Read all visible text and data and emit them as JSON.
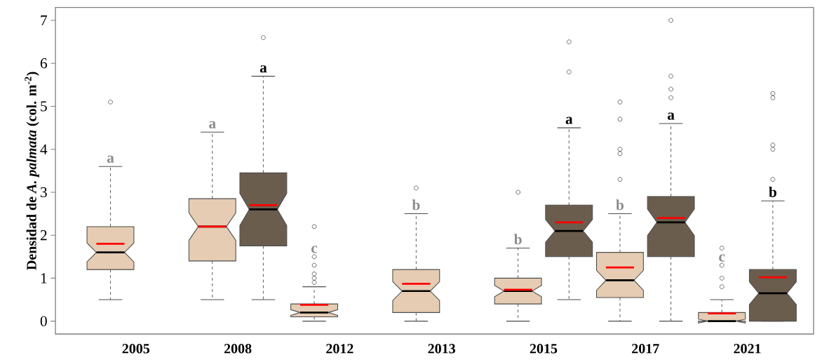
{
  "chart_data": {
    "type": "box",
    "ylabel": "Densidad de *A. palmata* (col. m$^{-2}$)",
    "categories": [
      "2005",
      "2008",
      "2012",
      "2013",
      "2015",
      "2017",
      "2021"
    ],
    "ylim": [
      -0.3,
      7.3
    ],
    "yticks": [
      0,
      1,
      2,
      3,
      4,
      5,
      6,
      7
    ],
    "series": [
      {
        "color": "#e5ccb2",
        "value_labels": [
          "a",
          "a",
          "c",
          "b",
          "b",
          "b",
          "c"
        ],
        "boxes": [
          {
            "low": 0.5,
            "q1": 1.2,
            "median": 1.6,
            "q3": 2.2,
            "high": 3.6,
            "mean": 1.8,
            "outliers": [
              5.1
            ]
          },
          {
            "low": 0.5,
            "q1": 1.4,
            "median": 2.2,
            "q3": 2.85,
            "high": 4.4,
            "mean": 2.2
          },
          {
            "low": 0,
            "q1": 0.1,
            "median": 0.2,
            "q3": 0.4,
            "high": 0.8,
            "mean": 0.38,
            "outliers": [
              0.9,
              1.0,
              1.1,
              1.3,
              1.5,
              2.2
            ]
          },
          {
            "low": 0,
            "q1": 0.2,
            "median": 0.7,
            "q3": 1.2,
            "high": 2.5,
            "mean": 0.87,
            "outliers": [
              3.1
            ]
          },
          {
            "low": 0,
            "q1": 0.4,
            "median": 0.7,
            "q3": 1.0,
            "high": 1.7,
            "mean": 0.73,
            "outliers": [
              3.0
            ]
          },
          {
            "low": 0,
            "q1": 0.55,
            "median": 0.95,
            "q3": 1.6,
            "high": 2.5,
            "mean": 1.25,
            "outliers": [
              3.3,
              3.9,
              4.0,
              4.7,
              5.1
            ]
          },
          {
            "low": 0,
            "q1": 0,
            "median": 0,
            "q3": 0.2,
            "high": 0.5,
            "mean": 0.18,
            "outliers": [
              0.8,
              1.0,
              1.3,
              1.7
            ]
          }
        ]
      },
      {
        "color": "#6b5d4e",
        "value_labels": [
          null,
          "a",
          null,
          null,
          "a",
          "a",
          "b"
        ],
        "boxes": [
          null,
          {
            "low": 0.5,
            "q1": 1.75,
            "median": 2.6,
            "q3": 3.45,
            "high": 5.7,
            "mean": 2.7,
            "outliers": [
              6.6
            ]
          },
          null,
          null,
          {
            "low": 0.5,
            "q1": 1.5,
            "median": 2.1,
            "q3": 2.7,
            "high": 4.5,
            "mean": 2.3,
            "outliers": [
              5.8,
              6.5
            ]
          },
          {
            "low": 0,
            "q1": 1.5,
            "median": 2.3,
            "q3": 2.9,
            "high": 4.6,
            "mean": 2.4,
            "outliers": [
              5.2,
              5.4,
              5.7,
              7.0
            ]
          },
          {
            "low": 0,
            "q1": 0,
            "median": 0.65,
            "q3": 1.2,
            "high": 2.8,
            "mean": 1.02,
            "outliers": [
              3.3,
              4.0,
              4.1,
              5.2,
              5.3
            ]
          }
        ]
      }
    ]
  }
}
